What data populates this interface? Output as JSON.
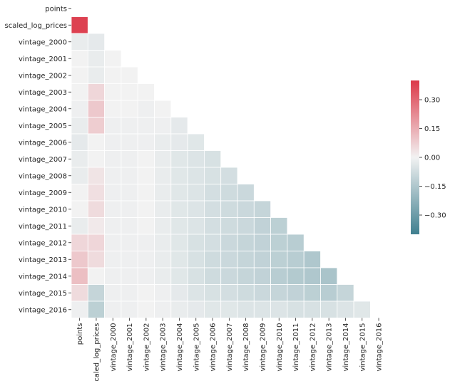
{
  "chart_data": {
    "type": "heatmap",
    "title": "",
    "xlabel": "",
    "ylabel": "",
    "mask": "upper-triangle-including-diagonal",
    "labels": [
      "points",
      "scaled_log_prices",
      "vintage_2000",
      "vintage_2001",
      "vintage_2002",
      "vintage_2003",
      "vintage_2004",
      "vintage_2005",
      "vintage_2006",
      "vintage_2007",
      "vintage_2008",
      "vintage_2009",
      "vintage_2010",
      "vintage_2011",
      "vintage_2012",
      "vintage_2013",
      "vintage_2014",
      "vintage_2015",
      "vintage_2016"
    ],
    "colormap": {
      "negative": "#3f7f8f",
      "neutral": "#f2f2f2",
      "positive": "#dc3848"
    },
    "vmin": -0.4,
    "vmax": 0.4,
    "colorbar_ticks": [
      0.3,
      0.15,
      0.0,
      -0.15,
      -0.3
    ],
    "colorbar_tick_labels": [
      "0.30",
      "0.15",
      "0.00",
      "−0.15",
      "−0.30"
    ],
    "values": [
      [
        null,
        null,
        null,
        null,
        null,
        null,
        null,
        null,
        null,
        null,
        null,
        null,
        null,
        null,
        null,
        null,
        null,
        null,
        null
      ],
      [
        0.38,
        null,
        null,
        null,
        null,
        null,
        null,
        null,
        null,
        null,
        null,
        null,
        null,
        null,
        null,
        null,
        null,
        null,
        null
      ],
      [
        -0.02,
        -0.03,
        null,
        null,
        null,
        null,
        null,
        null,
        null,
        null,
        null,
        null,
        null,
        null,
        null,
        null,
        null,
        null,
        null
      ],
      [
        0.0,
        -0.02,
        0.0,
        null,
        null,
        null,
        null,
        null,
        null,
        null,
        null,
        null,
        null,
        null,
        null,
        null,
        null,
        null,
        null
      ],
      [
        0.0,
        -0.02,
        0.0,
        0.0,
        null,
        null,
        null,
        null,
        null,
        null,
        null,
        null,
        null,
        null,
        null,
        null,
        null,
        null,
        null
      ],
      [
        0.0,
        0.06,
        0.0,
        0.0,
        0.0,
        null,
        null,
        null,
        null,
        null,
        null,
        null,
        null,
        null,
        null,
        null,
        null,
        null,
        null
      ],
      [
        -0.01,
        0.09,
        0.0,
        0.0,
        -0.01,
        0.0,
        null,
        null,
        null,
        null,
        null,
        null,
        null,
        null,
        null,
        null,
        null,
        null,
        null
      ],
      [
        -0.02,
        0.08,
        -0.01,
        -0.01,
        -0.01,
        -0.01,
        -0.03,
        null,
        null,
        null,
        null,
        null,
        null,
        null,
        null,
        null,
        null,
        null,
        null
      ],
      [
        -0.03,
        0.0,
        -0.01,
        -0.01,
        -0.01,
        -0.02,
        -0.03,
        -0.04,
        null,
        null,
        null,
        null,
        null,
        null,
        null,
        null,
        null,
        null,
        null
      ],
      [
        -0.02,
        0.0,
        -0.01,
        -0.01,
        0.0,
        -0.02,
        -0.04,
        -0.05,
        -0.06,
        null,
        null,
        null,
        null,
        null,
        null,
        null,
        null,
        null,
        null
      ],
      [
        -0.02,
        0.03,
        -0.01,
        -0.01,
        0.0,
        -0.02,
        -0.04,
        -0.05,
        -0.06,
        -0.07,
        null,
        null,
        null,
        null,
        null,
        null,
        null,
        null,
        null
      ],
      [
        0.0,
        0.04,
        -0.01,
        -0.01,
        0.0,
        -0.02,
        -0.04,
        -0.05,
        -0.07,
        -0.08,
        -0.09,
        null,
        null,
        null,
        null,
        null,
        null,
        null,
        null
      ],
      [
        0.0,
        0.05,
        -0.01,
        -0.01,
        0.0,
        -0.02,
        -0.04,
        -0.05,
        -0.07,
        -0.08,
        -0.09,
        -0.1,
        null,
        null,
        null,
        null,
        null,
        null,
        null
      ],
      [
        -0.02,
        0.02,
        -0.01,
        -0.01,
        0.0,
        -0.02,
        -0.04,
        -0.05,
        -0.07,
        -0.08,
        -0.09,
        -0.11,
        -0.12,
        null,
        null,
        null,
        null,
        null,
        null
      ],
      [
        0.06,
        0.06,
        -0.01,
        -0.01,
        -0.01,
        -0.02,
        -0.04,
        -0.06,
        -0.07,
        -0.09,
        -0.1,
        -0.11,
        -0.12,
        -0.13,
        null,
        null,
        null,
        null,
        null
      ],
      [
        0.09,
        0.05,
        -0.01,
        -0.01,
        -0.01,
        -0.02,
        -0.04,
        -0.06,
        -0.08,
        -0.09,
        -0.1,
        -0.11,
        -0.12,
        -0.13,
        -0.15,
        null,
        null,
        null,
        null
      ],
      [
        0.11,
        0.0,
        -0.01,
        -0.01,
        -0.01,
        -0.02,
        -0.04,
        -0.06,
        -0.08,
        -0.09,
        -0.1,
        -0.11,
        -0.13,
        -0.14,
        -0.15,
        -0.16,
        null,
        null,
        null
      ],
      [
        0.05,
        -0.1,
        -0.01,
        -0.01,
        0.0,
        -0.01,
        -0.03,
        -0.05,
        -0.06,
        -0.07,
        -0.08,
        -0.09,
        -0.1,
        -0.11,
        -0.12,
        -0.13,
        -0.1,
        null,
        null
      ],
      [
        -0.01,
        -0.12,
        -0.01,
        -0.01,
        0.0,
        -0.01,
        -0.02,
        -0.03,
        -0.04,
        -0.04,
        -0.05,
        -0.05,
        -0.05,
        -0.06,
        -0.06,
        -0.06,
        -0.05,
        -0.04,
        null
      ]
    ]
  }
}
